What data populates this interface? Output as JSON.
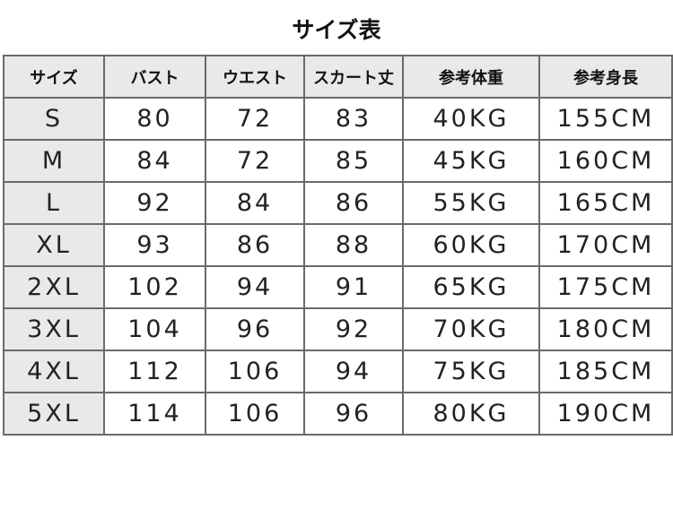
{
  "title": "サイズ表",
  "headers": [
    "サイズ",
    "バスト",
    "ウエスト",
    "スカート丈",
    "参考体重",
    "参考身長"
  ],
  "rows": [
    [
      "S",
      "80",
      "72",
      "83",
      "40KG",
      "155CM"
    ],
    [
      "M",
      "84",
      "72",
      "85",
      "45KG",
      "160CM"
    ],
    [
      "L",
      "92",
      "84",
      "86",
      "55KG",
      "165CM"
    ],
    [
      "XL",
      "93",
      "86",
      "88",
      "60KG",
      "170CM"
    ],
    [
      "2XL",
      "102",
      "94",
      "91",
      "65KG",
      "175CM"
    ],
    [
      "3XL",
      "104",
      "96",
      "92",
      "70KG",
      "180CM"
    ],
    [
      "4XL",
      "112",
      "106",
      "94",
      "75KG",
      "185CM"
    ],
    [
      "5XL",
      "114",
      "106",
      "96",
      "80KG",
      "190CM"
    ]
  ]
}
